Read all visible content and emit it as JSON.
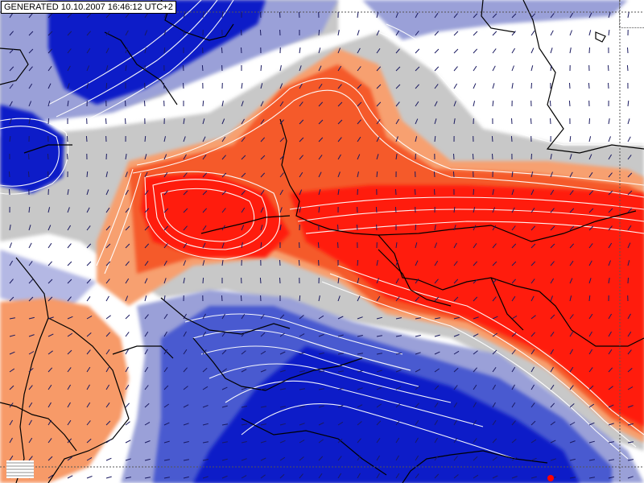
{
  "header": {
    "generated_label": "GENERATED 10.10.2007 16:46:12 UTC+2"
  },
  "legend": {
    "warm_strong": "#ff1a0a",
    "warm_mid": "#f55a2a",
    "warm_light": "#f79a68",
    "neutral": "#c8c8c8",
    "cool_light": "#9aa0d8",
    "cool_mid": "#4a5ad0",
    "cool_strong": "#0a1ac8",
    "contour": "#ffffff",
    "border": "#000000",
    "wind_arrow": "#1a1a60"
  },
  "icons": {
    "scale": "scale-bars-icon",
    "corner": "corner-frame-icon"
  }
}
